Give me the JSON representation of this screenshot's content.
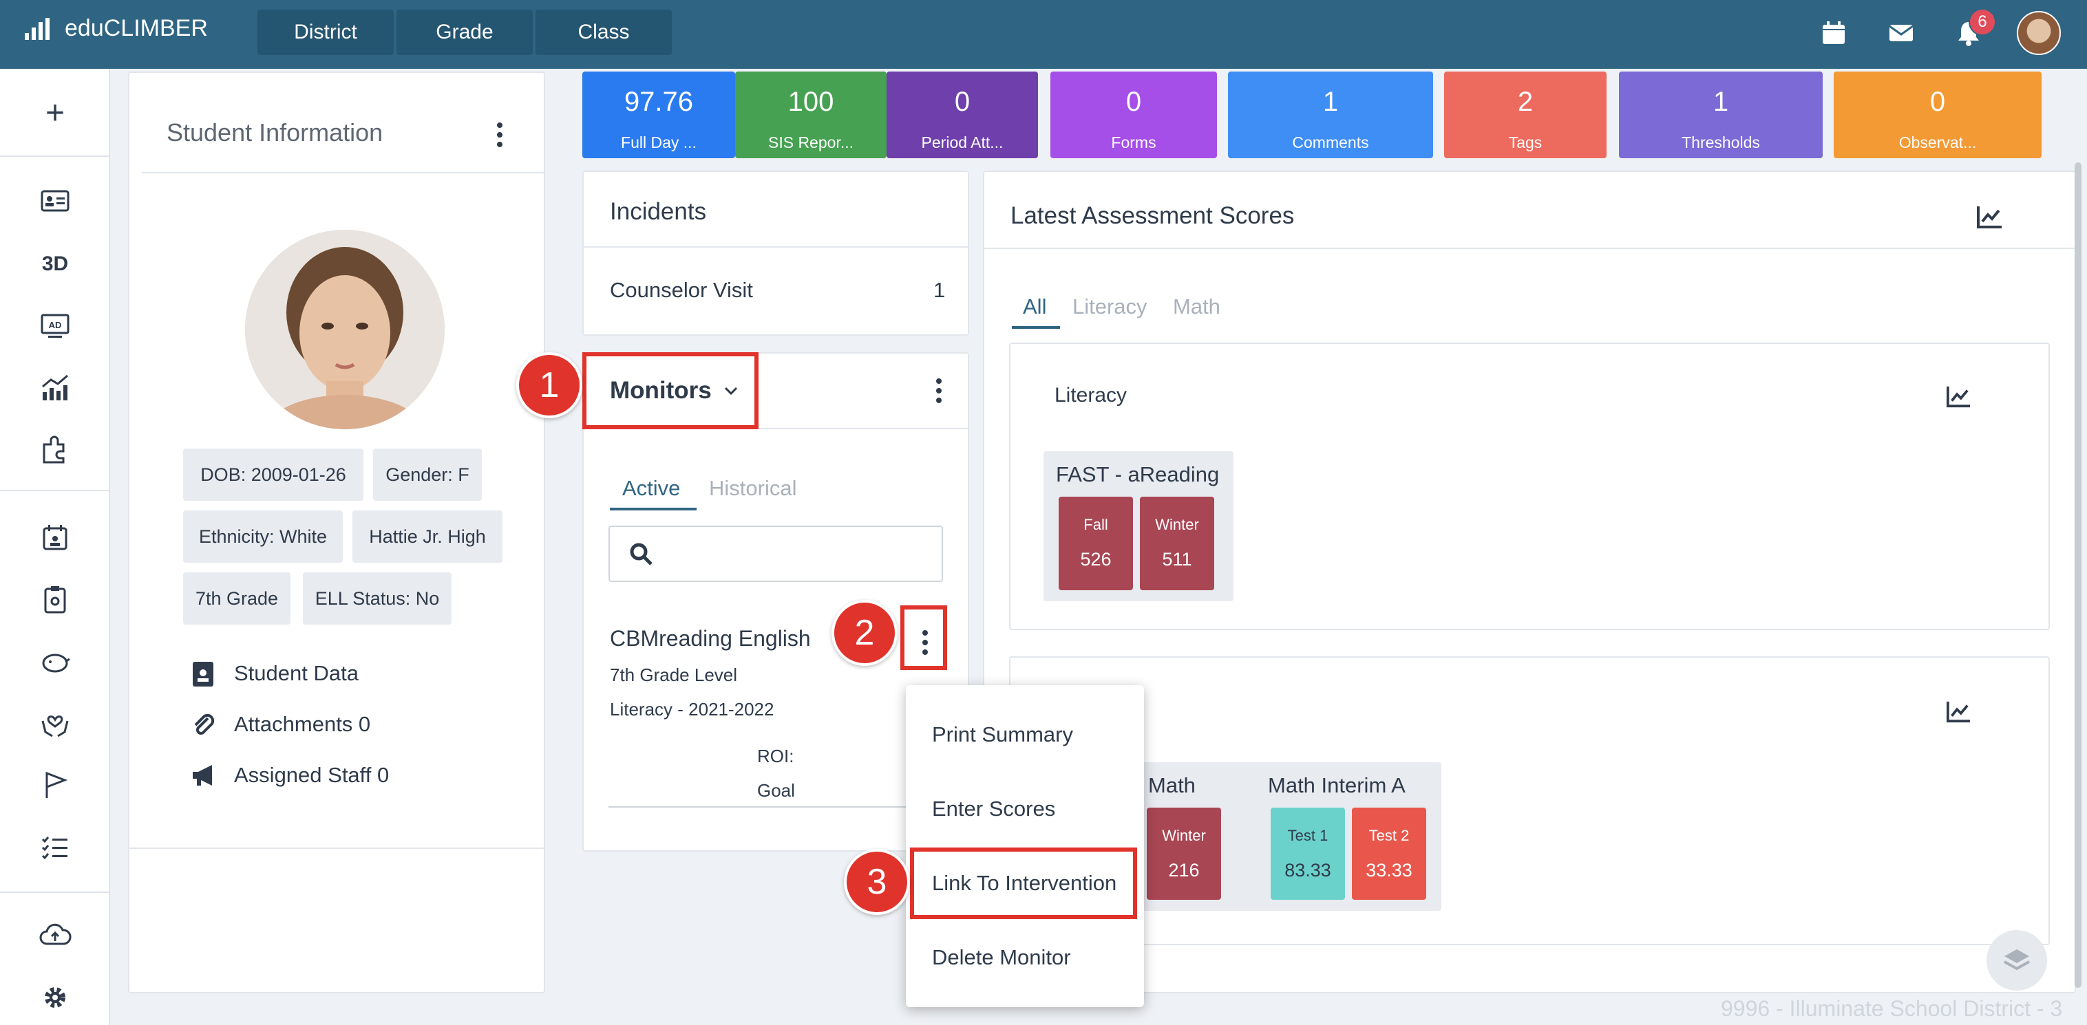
{
  "app": {
    "name": "eduCLIMBER",
    "notification_count": "6"
  },
  "nav_tabs": [
    "District",
    "Grade",
    "Class"
  ],
  "student": {
    "title": "Student Information",
    "chips": [
      "DOB: 2009-01-26",
      "Gender: F",
      "Ethnicity: White",
      "Hattie Jr. High",
      "7th Grade",
      "ELL Status: No"
    ],
    "links": [
      "Student Data",
      "Attachments 0",
      "Assigned Staff 0"
    ]
  },
  "stats": [
    {
      "value": "97.76",
      "label": "Full Day ...",
      "color": "#2b7bf0",
      "icon": "attendance-icon"
    },
    {
      "value": "100",
      "label": "SIS Repor...",
      "color": "#46a152",
      "icon": "clipboard-icon"
    },
    {
      "value": "0",
      "label": "Period Att...",
      "color": "#6f3fab",
      "icon": "clipboard-icon"
    },
    {
      "value": "0",
      "label": "Forms",
      "color": "#a54fe8",
      "icon": "clipboard-icon"
    },
    {
      "value": "1",
      "label": "Comments",
      "color": "#3f8ef6",
      "icon": "comments-icon"
    },
    {
      "value": "2",
      "label": "Tags",
      "color": "#ec6b5e",
      "icon": "tags-icon"
    },
    {
      "value": "1",
      "label": "Thresholds",
      "color": "#7c6ad7",
      "icon": "flag-icon"
    },
    {
      "value": "0",
      "label": "Observat...",
      "color": "#f39a34",
      "icon": "observation-icon"
    }
  ],
  "incidents": {
    "title": "Incidents",
    "rows": [
      {
        "label": "Counselor Visit",
        "count": "1"
      }
    ]
  },
  "monitors": {
    "title": "Monitors",
    "tabs": [
      "Active",
      "Historical"
    ],
    "item": {
      "name": "CBMreading English",
      "level": "7th Grade Level",
      "subject": "Literacy - 2021-2022",
      "roi": "ROI:",
      "goal": "Goal"
    }
  },
  "context_menu": [
    "Print Summary",
    "Enter Scores",
    "Link To Intervention",
    "Delete Monitor"
  ],
  "assessment": {
    "title": "Latest Assessment Scores",
    "tabs": [
      "All",
      "Literacy",
      "Math"
    ],
    "literacy": {
      "title": "Literacy",
      "test": "FAST - aReading",
      "scores": [
        {
          "season": "Fall",
          "value": "526"
        },
        {
          "season": "Winter",
          "value": "511"
        }
      ]
    },
    "math": {
      "test1": "Math",
      "test1_scores": [
        {
          "season": "Winter",
          "value": "216"
        }
      ],
      "test2": "Math Interim A",
      "test2_scores": [
        {
          "season": "Test 1",
          "value": "83.33"
        },
        {
          "season": "Test 2",
          "value": "33.33"
        }
      ]
    }
  },
  "annotations": [
    "1",
    "2",
    "3"
  ],
  "footer": "9996 - Illuminate School District - 3"
}
